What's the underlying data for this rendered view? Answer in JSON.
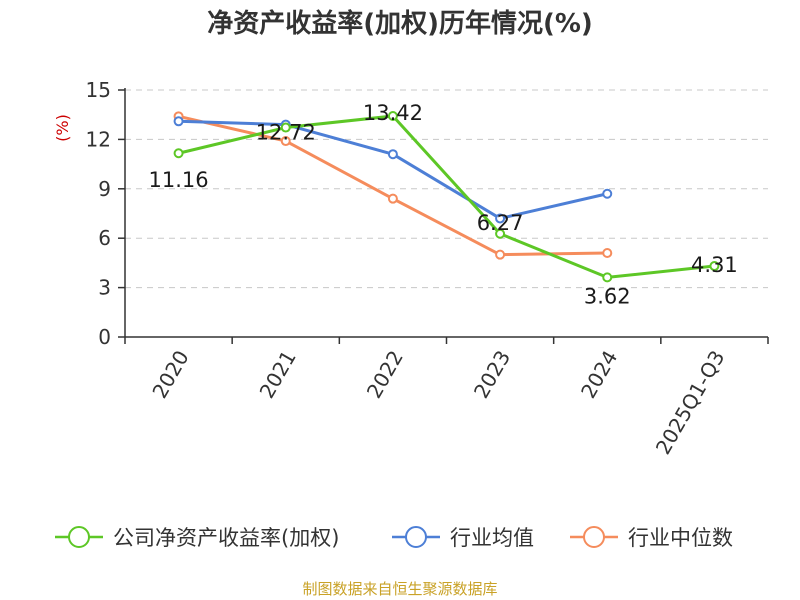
{
  "chart_data": {
    "type": "line",
    "title": "净资产收益率(加权)历年情况(%)",
    "ylabel": "(%)",
    "xlabel": "",
    "categories": [
      "2020",
      "2021",
      "2022",
      "2023",
      "2024",
      "2025Q1-Q3"
    ],
    "ylim": [
      0,
      15
    ],
    "yticks": [
      0,
      3,
      6,
      9,
      12,
      15
    ],
    "grid": true,
    "legend_position": "bottom",
    "series": [
      {
        "name": "公司净资产收益率(加权)",
        "color": "#5dc726",
        "values": [
          11.16,
          12.72,
          13.42,
          6.27,
          3.62,
          4.31
        ],
        "labels": [
          "11.16",
          "12.72",
          "13.42",
          "6.27",
          "3.62",
          "4.31"
        ]
      },
      {
        "name": "行业均值",
        "color": "#4d7fd6",
        "values": [
          13.1,
          12.9,
          11.1,
          7.2,
          8.7,
          null
        ]
      },
      {
        "name": "行业中位数",
        "color": "#f58c5c",
        "values": [
          13.4,
          11.9,
          8.4,
          5.0,
          5.1,
          null
        ]
      }
    ],
    "source": "制图数据来自恒生聚源数据库",
    "ylabel_color": "#cc0000",
    "source_color": "#c9a227"
  }
}
